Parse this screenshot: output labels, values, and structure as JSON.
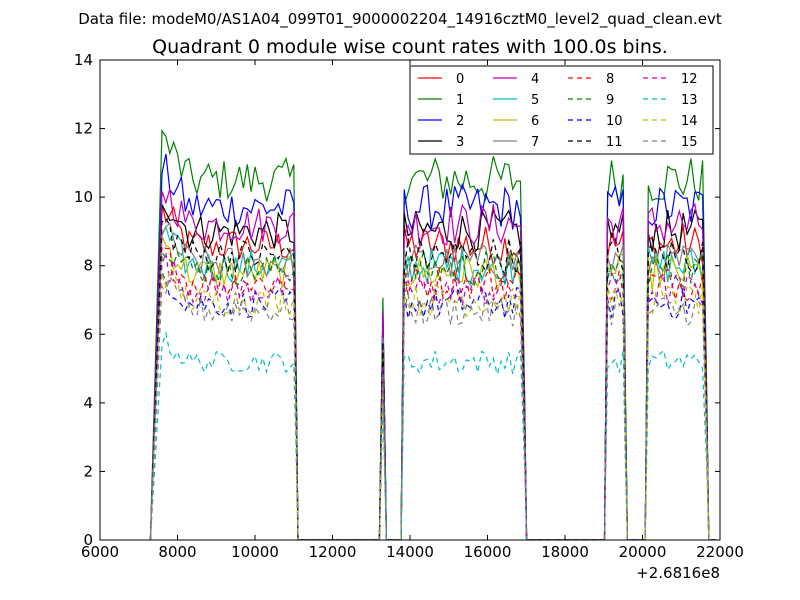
{
  "figure": {
    "suptitle": "Data file: modeM0/AS1A04_099T01_9000002204_14916cztM0_level2_quad_clean.evt"
  },
  "chart_data": {
    "type": "line",
    "title": "Quadrant 0 module wise count rates with 100.0s bins.",
    "xlabel": "",
    "ylabel": "",
    "x_offset_label": "+2.6816e8",
    "xlim": [
      6000,
      22000
    ],
    "ylim": [
      0,
      14
    ],
    "xticks": [
      6000,
      8000,
      10000,
      12000,
      14000,
      16000,
      18000,
      20000,
      22000
    ],
    "yticks": [
      0,
      2,
      4,
      6,
      8,
      10,
      12,
      14
    ],
    "xtick_labels": [
      "6000",
      "8000",
      "10000",
      "12000",
      "14000",
      "16000",
      "18000",
      "20000",
      "22000"
    ],
    "ytick_labels": [
      "0",
      "2",
      "4",
      "6",
      "8",
      "10",
      "12",
      "14"
    ],
    "grid": false,
    "legend_position": "top-right",
    "legend_columns": 4,
    "bin_width": 100,
    "segments": [
      {
        "start": 7600,
        "end": 11000,
        "peak_x": 7600
      },
      {
        "start": 13850,
        "end": 16900,
        "peak_x": 14500
      },
      {
        "start": 19100,
        "end": 19500,
        "peak_x": 19500
      },
      {
        "start": 20150,
        "end": 21600,
        "peak_x": 20200
      }
    ],
    "spike": {
      "x": 13300,
      "fraction": 0.7
    },
    "series": [
      {
        "name": "0",
        "color": "#ff0000",
        "style": "solid",
        "level": 8.6
      },
      {
        "name": "1",
        "color": "#008000",
        "style": "solid",
        "level": 10.5
      },
      {
        "name": "2",
        "color": "#0000ff",
        "style": "solid",
        "level": 9.7
      },
      {
        "name": "3",
        "color": "#000000",
        "style": "solid",
        "level": 9.0
      },
      {
        "name": "4",
        "color": "#bf00bf",
        "style": "solid",
        "level": 9.2
      },
      {
        "name": "5",
        "color": "#00bfbf",
        "style": "solid",
        "level": 8.0
      },
      {
        "name": "6",
        "color": "#bfbf00",
        "style": "solid",
        "level": 7.8
      },
      {
        "name": "7",
        "color": "#808080",
        "style": "solid",
        "level": 8.1
      },
      {
        "name": "8",
        "color": "#ff0000",
        "style": "dashed",
        "level": 7.5
      },
      {
        "name": "9",
        "color": "#008000",
        "style": "dashed",
        "level": 7.9
      },
      {
        "name": "10",
        "color": "#0000ff",
        "style": "dashed",
        "level": 6.9
      },
      {
        "name": "11",
        "color": "#000000",
        "style": "dashed",
        "level": 8.3
      },
      {
        "name": "12",
        "color": "#bf00bf",
        "style": "dashed",
        "level": 7.3
      },
      {
        "name": "13",
        "color": "#00bfbf",
        "style": "dashed",
        "level": 5.2
      },
      {
        "name": "14",
        "color": "#bfbf00",
        "style": "dashed",
        "level": 7.0
      },
      {
        "name": "15",
        "color": "#808080",
        "style": "dashed",
        "level": 6.7
      }
    ]
  }
}
